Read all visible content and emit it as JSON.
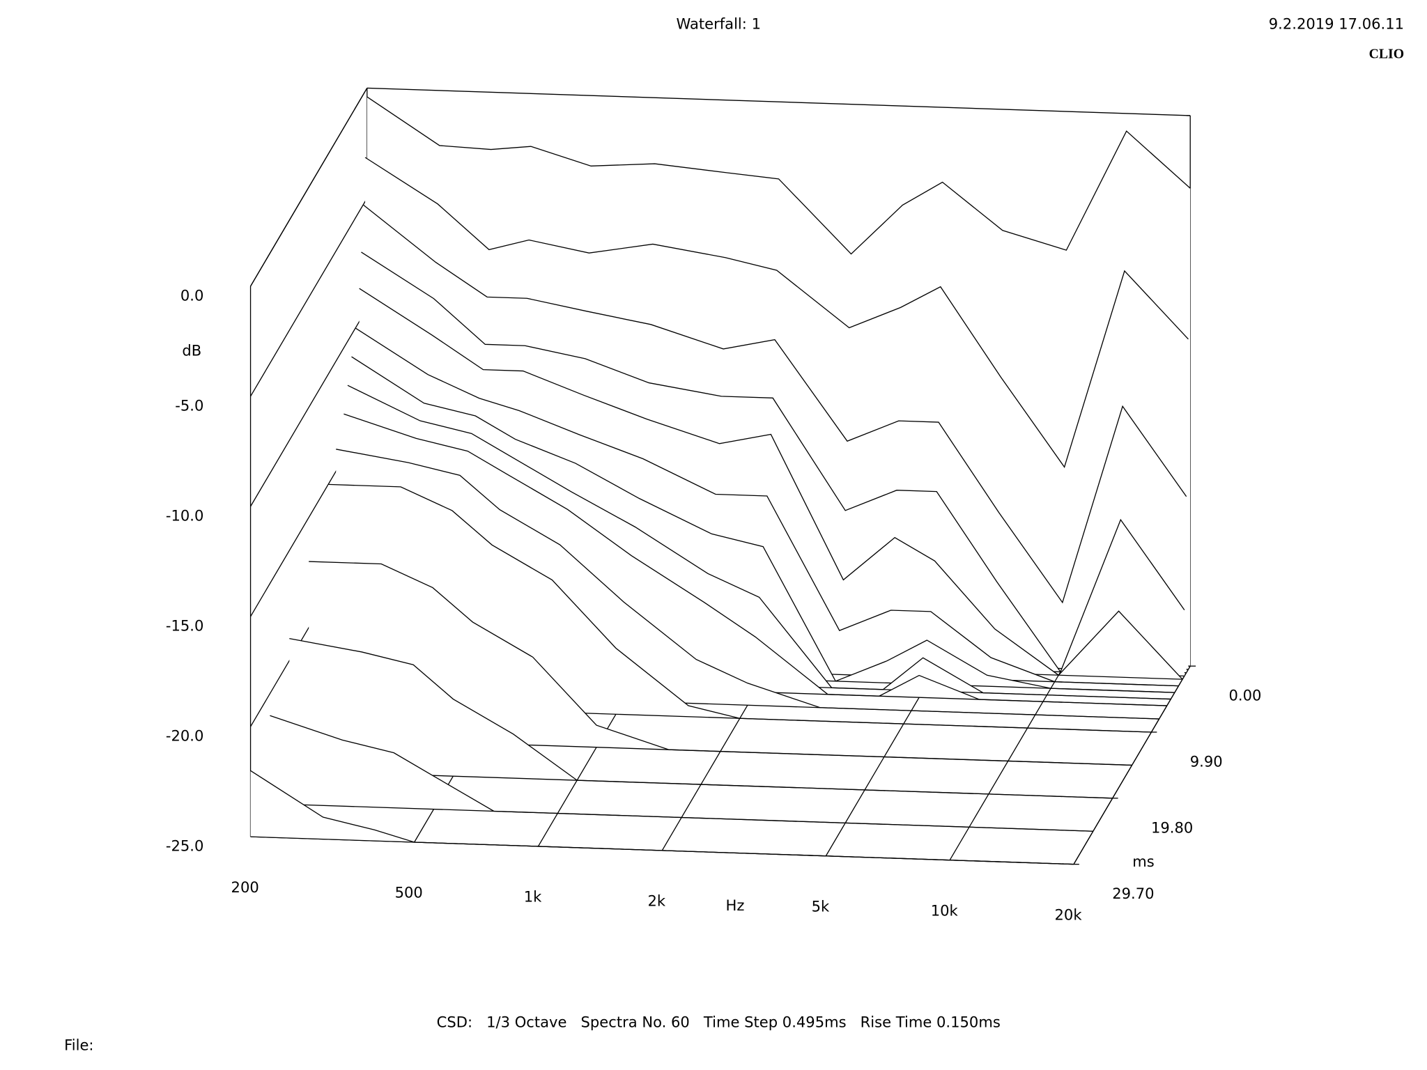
{
  "chart_data": {
    "type": "waterfall",
    "title": "Waterfall: 1",
    "timestamp": "9.2.2019 17.06.11",
    "brand": "CLIO",
    "footer": "CSD:   1/3 Octave   Spectra No. 60   Time Step 0.495ms   Rise Time 0.150ms",
    "file_label": "File:",
    "x_label": "Hz",
    "y_label": "dB",
    "z_label": "ms",
    "log_x": true,
    "line_color": "#000000",
    "x": [
      200,
      300,
      400,
      500,
      700,
      1000,
      1500,
      2000,
      3000,
      4000,
      5000,
      7000,
      10000,
      14000,
      20000
    ],
    "xlim": [
      200,
      20000
    ],
    "xticks": [
      {
        "value": 200,
        "label": "200"
      },
      {
        "value": 500,
        "label": "500"
      },
      {
        "value": 1000,
        "label": "1k"
      },
      {
        "value": 2000,
        "label": "2k"
      },
      {
        "value": 5000,
        "label": "5k"
      },
      {
        "value": 10000,
        "label": "10k"
      },
      {
        "value": 20000,
        "label": "20k"
      }
    ],
    "ylim": [
      -25,
      0
    ],
    "yticks": [
      {
        "value": 0,
        "label": "0.0"
      },
      {
        "value": -5,
        "label": "-5.0"
      },
      {
        "value": -10,
        "label": "-10.0"
      },
      {
        "value": -15,
        "label": "-15.0"
      },
      {
        "value": -20,
        "label": "-20.0"
      },
      {
        "value": -25,
        "label": "-25.0"
      }
    ],
    "zlim": [
      0,
      29.7
    ],
    "zticks": [
      {
        "value": 0,
        "label": "0.00"
      },
      {
        "value": 9.9,
        "label": "9.90"
      },
      {
        "value": 19.8,
        "label": "19.80"
      },
      {
        "value": 29.7,
        "label": "29.70"
      }
    ],
    "series": [
      {
        "time": 0,
        "values": [
          -0.4,
          -2.5,
          -2.6,
          -2.4,
          -3.2,
          -3.0,
          -3.3,
          -3.5,
          -6.8,
          -4.5,
          -3.4,
          -5.5,
          -6.3,
          -0.8,
          -3.3
        ]
      },
      {
        "time": 0.495,
        "values": [
          -3,
          -5,
          -7,
          -6.5,
          -7,
          -6.5,
          -7,
          -7.5,
          -10,
          -9,
          -8,
          -12,
          -16,
          -7,
          -10
        ]
      },
      {
        "time": 0.99,
        "values": [
          -5,
          -7.5,
          -9,
          -9,
          -9.5,
          -10,
          -11,
          -10.5,
          -15,
          -14,
          -14,
          -18,
          -22,
          -13,
          -17
        ]
      },
      {
        "time": 1.485,
        "values": [
          -7,
          -9,
          -11,
          -11,
          -11.5,
          -12.5,
          -13,
          -13,
          -18,
          -17,
          -17,
          -21,
          -25,
          -18,
          -22
        ]
      },
      {
        "time": 1.98,
        "values": [
          -8.5,
          -10.5,
          -12,
          -12,
          -13,
          -14,
          -15,
          -14.5,
          -21,
          -19,
          -20,
          -23,
          -25,
          -22,
          -25
        ]
      },
      {
        "time": 2.97,
        "values": [
          -10,
          -12,
          -13,
          -13.5,
          -14.5,
          -15.5,
          -17,
          -17,
          -23,
          -22,
          -22,
          -24,
          -25,
          -25,
          -25
        ]
      },
      {
        "time": 3.96,
        "values": [
          -11,
          -13,
          -13.5,
          -14.5,
          -15.5,
          -17,
          -18.5,
          -19,
          -25,
          -24,
          -23,
          -24.5,
          -25,
          -25,
          -25
        ]
      },
      {
        "time": 4.95,
        "values": [
          -12,
          -13.5,
          -14,
          -15,
          -16.5,
          -18,
          -20,
          -21,
          -25,
          -25,
          -23.5,
          -25,
          -25,
          -25,
          -25
        ]
      },
      {
        "time": 5.94,
        "values": [
          -13,
          -14,
          -14.5,
          -15.5,
          -17,
          -19,
          -21,
          -22.5,
          -25,
          -25,
          -24,
          -25,
          -25,
          -25,
          -25
        ]
      },
      {
        "time": 7.92,
        "values": [
          -14,
          -14.5,
          -15,
          -16.5,
          -18,
          -20.5,
          -23,
          -24,
          -25,
          -25,
          -25,
          -25,
          -25,
          -25,
          -25
        ]
      },
      {
        "time": 9.9,
        "values": [
          -15,
          -15,
          -16,
          -17.5,
          -19,
          -22,
          -24.5,
          -25,
          -25,
          -25,
          -25,
          -25,
          -25,
          -25,
          -25
        ]
      },
      {
        "time": 14.85,
        "values": [
          -17,
          -17,
          -18,
          -19.5,
          -21,
          -24,
          -25,
          -25,
          -25,
          -25,
          -25,
          -25,
          -25,
          -25,
          -25
        ]
      },
      {
        "time": 19.8,
        "values": [
          -19,
          -19.5,
          -20,
          -21.5,
          -23,
          -25,
          -25,
          -25,
          -25,
          -25,
          -25,
          -25,
          -25,
          -25,
          -25
        ]
      },
      {
        "time": 24.75,
        "values": [
          -21,
          -22,
          -22.5,
          -23.5,
          -25,
          -25,
          -25,
          -25,
          -25,
          -25,
          -25,
          -25,
          -25,
          -25,
          -25
        ]
      },
      {
        "time": 29.7,
        "values": [
          -22,
          -24,
          -24.5,
          -25,
          -25,
          -25,
          -25,
          -25,
          -25,
          -25,
          -25,
          -25,
          -25,
          -25,
          -25
        ]
      }
    ]
  }
}
